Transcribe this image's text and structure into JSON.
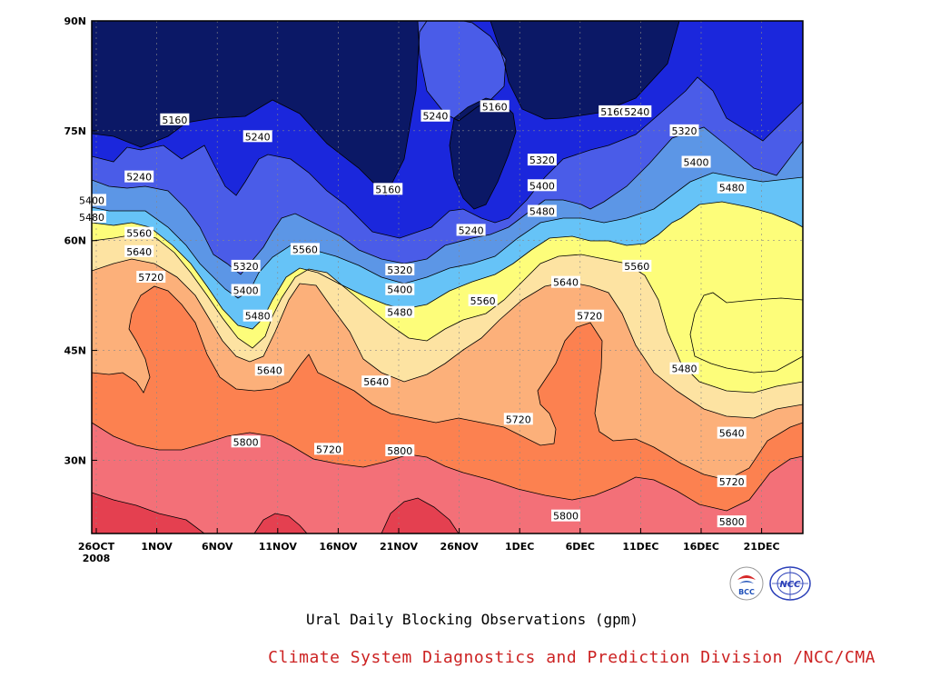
{
  "colors": {
    "c5080": "#0b1866",
    "c5160": "#1b27dc",
    "c5240": "#4a5ce8",
    "c5320": "#5c96e6",
    "c5400": "#66c3f7",
    "c5480": "#fdfd7a",
    "c5560": "#fde3a2",
    "c5640": "#fcb07a",
    "c5720": "#fc8150",
    "c5800": "#f37078",
    "c5880": "#e44050",
    "contour": "#000000",
    "grid": "#888888",
    "credit": "#cc2222"
  },
  "chart_data": {
    "type": "contour",
    "title": "",
    "caption": "Ural Daily Blocking Observations (gpm)",
    "credit": "Climate System Diagnostics and Prediction Division /NCC/CMA",
    "x_tick_labels": [
      "26OCT",
      "1NOV",
      "6NOV",
      "11NOV",
      "16NOV",
      "21NOV",
      "26NOV",
      "1DEC",
      "6DEC",
      "11DEC",
      "16DEC",
      "21DEC"
    ],
    "x_year_label": "2008",
    "y_tick_labels": [
      "30N",
      "45N",
      "60N",
      "75N",
      "90N"
    ],
    "ylim": [
      20,
      90
    ],
    "xlim": [
      "2008-10-24",
      "2008-12-23"
    ],
    "units": "gpm",
    "contour_levels": [
      5160,
      5240,
      5320,
      5400,
      5480,
      5560,
      5640,
      5720,
      5800,
      5880
    ],
    "grid": true,
    "contour_labels": [
      {
        "value": "5160",
        "date": "2008-10-31",
        "lat": 76.5
      },
      {
        "value": "5240",
        "date": "2008-11-07",
        "lat": 74.2
      },
      {
        "value": "5240",
        "date": "2008-10-28",
        "lat": 68.7
      },
      {
        "value": "5400",
        "date": "2008-10-24",
        "lat": 65.5
      },
      {
        "value": "5480",
        "date": "2008-10-24",
        "lat": 63.2
      },
      {
        "value": "5560",
        "date": "2008-10-28",
        "lat": 61.0
      },
      {
        "value": "5640",
        "date": "2008-10-28",
        "lat": 58.5
      },
      {
        "value": "5720",
        "date": "2008-10-29",
        "lat": 55.0
      },
      {
        "value": "5320",
        "date": "2008-11-06",
        "lat": 56.5
      },
      {
        "value": "5400",
        "date": "2008-11-06",
        "lat": 53.2
      },
      {
        "value": "5480",
        "date": "2008-11-07",
        "lat": 49.7
      },
      {
        "value": "5640",
        "date": "2008-11-08",
        "lat": 42.3
      },
      {
        "value": "5560",
        "date": "2008-11-11",
        "lat": 58.8
      },
      {
        "value": "5800",
        "date": "2008-11-06",
        "lat": 32.5
      },
      {
        "value": "5720",
        "date": "2008-11-13",
        "lat": 31.5
      },
      {
        "value": "5160",
        "date": "2008-11-18",
        "lat": 67.0
      },
      {
        "value": "5320",
        "date": "2008-11-19",
        "lat": 56.0
      },
      {
        "value": "5400",
        "date": "2008-11-19",
        "lat": 53.3
      },
      {
        "value": "5480",
        "date": "2008-11-19",
        "lat": 50.2
      },
      {
        "value": "5640",
        "date": "2008-11-17",
        "lat": 40.7
      },
      {
        "value": "5800",
        "date": "2008-11-19",
        "lat": 31.3
      },
      {
        "value": "5240",
        "date": "2008-11-22",
        "lat": 77.0
      },
      {
        "value": "5160",
        "date": "2008-11-27",
        "lat": 78.3
      },
      {
        "value": "5240",
        "date": "2008-11-25",
        "lat": 61.4
      },
      {
        "value": "5560",
        "date": "2008-11-26",
        "lat": 51.8
      },
      {
        "value": "5720",
        "date": "2008-11-29",
        "lat": 35.6
      },
      {
        "value": "5320",
        "date": "2008-12-01",
        "lat": 71.0
      },
      {
        "value": "5400",
        "date": "2008-12-01",
        "lat": 67.5
      },
      {
        "value": "5480",
        "date": "2008-12-01",
        "lat": 64.0
      },
      {
        "value": "5640",
        "date": "2008-12-03",
        "lat": 54.3
      },
      {
        "value": "5720",
        "date": "2008-12-05",
        "lat": 49.7
      },
      {
        "value": "5800",
        "date": "2008-12-03",
        "lat": 22.4
      },
      {
        "value": "5160",
        "date": "2008-12-07",
        "lat": 77.6
      },
      {
        "value": "5240",
        "date": "2008-12-09",
        "lat": 77.6
      },
      {
        "value": "5320",
        "date": "2008-12-13",
        "lat": 75.0
      },
      {
        "value": "5400",
        "date": "2008-12-14",
        "lat": 70.7
      },
      {
        "value": "5560",
        "date": "2008-12-09",
        "lat": 56.5
      },
      {
        "value": "5480",
        "date": "2008-12-17",
        "lat": 67.2
      },
      {
        "value": "5480",
        "date": "2008-12-13",
        "lat": 42.5
      },
      {
        "value": "5640",
        "date": "2008-12-17",
        "lat": 33.7
      },
      {
        "value": "5720",
        "date": "2008-12-17",
        "lat": 27.1
      },
      {
        "value": "5800",
        "date": "2008-12-17",
        "lat": 21.6
      }
    ]
  },
  "logos": {
    "bcc_text": "BCC",
    "ncc_text": "NCC"
  }
}
